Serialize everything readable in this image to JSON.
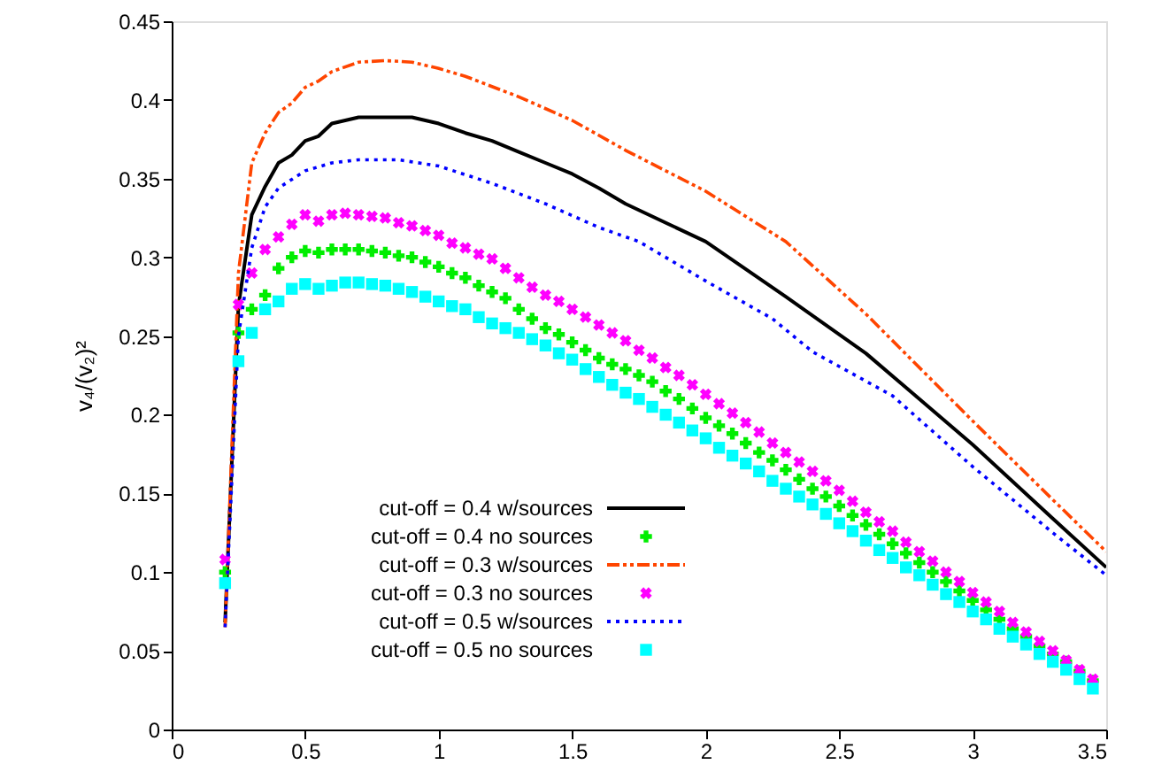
{
  "chart_data": {
    "type": "line",
    "ylabel": "v₄/(v₂)²",
    "xlim": [
      0,
      3.5
    ],
    "xticks": [
      0,
      0.5,
      1,
      1.5,
      2,
      2.5,
      3,
      3.5
    ],
    "ylim": [
      0,
      0.45
    ],
    "yticks": [
      0,
      0.05,
      0.1,
      0.15,
      0.2,
      0.25,
      0.3,
      0.35,
      0.4,
      0.45
    ],
    "grid": false,
    "legend": "bottom left",
    "x": [
      0.2,
      0.25,
      0.3,
      0.35,
      0.4,
      0.45,
      0.5,
      0.55,
      0.6,
      0.65,
      0.7,
      0.75,
      0.8,
      0.85,
      0.9,
      0.95,
      1.0,
      1.05,
      1.1,
      1.15,
      1.2,
      1.25,
      1.3,
      1.35,
      1.4,
      1.45,
      1.5,
      1.55,
      1.6,
      1.65,
      1.7,
      1.75,
      1.8,
      1.85,
      1.9,
      1.95,
      2.0,
      2.05,
      2.1,
      2.15,
      2.2,
      2.25,
      2.3,
      2.35,
      2.4,
      2.45,
      2.5,
      2.55,
      2.6,
      2.65,
      2.7,
      2.75,
      2.8,
      2.85,
      2.9,
      2.95,
      3.0,
      3.05,
      3.1,
      3.15,
      3.2,
      3.25,
      3.3,
      3.35,
      3.4,
      3.45
    ],
    "series": [
      {
        "name": "cut-off = 0.4 w/sources",
        "color": "#000000",
        "line_style": "solid",
        "marker": "none",
        "x": [
          0.2,
          0.25,
          0.3,
          0.35,
          0.4,
          0.45,
          0.5,
          0.55,
          0.6,
          0.65,
          0.7,
          0.8,
          0.85,
          0.9,
          1.0,
          1.1,
          1.2,
          1.3,
          1.4,
          1.5,
          1.6,
          1.7,
          2.0,
          2.3,
          2.6,
          3.0,
          3.3,
          3.5
        ],
        "values": [
          0.068,
          0.269,
          0.327,
          0.345,
          0.36,
          0.365,
          0.374,
          0.377,
          0.385,
          0.387,
          0.389,
          0.389,
          0.389,
          0.389,
          0.385,
          0.379,
          0.374,
          0.367,
          0.36,
          0.353,
          0.344,
          0.334,
          0.31,
          0.275,
          0.239,
          0.181,
          0.134,
          0.103
        ]
      },
      {
        "name": "cut-off = 0.4 no sources",
        "type": "scatter",
        "color": "#00ee00",
        "marker": "cross",
        "values": [
          0.1,
          0.252,
          0.267,
          0.276,
          0.293,
          0.3,
          0.304,
          0.303,
          0.305,
          0.305,
          0.305,
          0.304,
          0.303,
          0.301,
          0.3,
          0.297,
          0.294,
          0.29,
          0.287,
          0.282,
          0.278,
          0.274,
          0.267,
          0.261,
          0.255,
          0.251,
          0.246,
          0.241,
          0.236,
          0.232,
          0.229,
          0.225,
          0.221,
          0.215,
          0.21,
          0.204,
          0.198,
          0.193,
          0.188,
          0.182,
          0.176,
          0.171,
          0.165,
          0.159,
          0.153,
          0.148,
          0.142,
          0.136,
          0.13,
          0.124,
          0.118,
          0.112,
          0.106,
          0.1,
          0.094,
          0.088,
          0.082,
          0.076,
          0.07,
          0.064,
          0.059,
          0.053,
          0.048,
          0.043,
          0.037,
          0.031
        ]
      },
      {
        "name": "cut-off = 0.3 w/sources",
        "color": "#ff4500",
        "line_style": "dashed",
        "marker": "none",
        "x": [
          0.2,
          0.25,
          0.3,
          0.35,
          0.4,
          0.45,
          0.5,
          0.55,
          0.6,
          0.7,
          0.8,
          0.9,
          1.0,
          1.1,
          1.3,
          1.5,
          1.7,
          2.0,
          2.3,
          2.6,
          3.0,
          3.3,
          3.5
        ],
        "values": [
          0.065,
          0.29,
          0.36,
          0.379,
          0.392,
          0.398,
          0.408,
          0.412,
          0.418,
          0.424,
          0.425,
          0.424,
          0.42,
          0.415,
          0.402,
          0.387,
          0.368,
          0.342,
          0.31,
          0.264,
          0.196,
          0.146,
          0.113
        ]
      },
      {
        "name": "cut-off = 0.3 no sources",
        "type": "scatter",
        "color": "#ff00ff",
        "marker": "x",
        "values": [
          0.108,
          0.27,
          0.29,
          0.305,
          0.313,
          0.321,
          0.327,
          0.323,
          0.327,
          0.328,
          0.327,
          0.326,
          0.325,
          0.322,
          0.32,
          0.317,
          0.314,
          0.309,
          0.306,
          0.302,
          0.299,
          0.293,
          0.287,
          0.281,
          0.276,
          0.272,
          0.267,
          0.262,
          0.257,
          0.252,
          0.247,
          0.241,
          0.236,
          0.23,
          0.225,
          0.219,
          0.213,
          0.207,
          0.201,
          0.195,
          0.189,
          0.182,
          0.176,
          0.17,
          0.164,
          0.158,
          0.152,
          0.145,
          0.138,
          0.132,
          0.126,
          0.119,
          0.113,
          0.107,
          0.1,
          0.094,
          0.087,
          0.081,
          0.075,
          0.068,
          0.062,
          0.056,
          0.05,
          0.044,
          0.038,
          0.032
        ]
      },
      {
        "name": "cut-off = 0.5 w/sources",
        "color": "#0000ff",
        "line_style": "dotted",
        "marker": "none",
        "x": [
          0.2,
          0.25,
          0.3,
          0.35,
          0.4,
          0.5,
          0.6,
          0.7,
          0.85,
          1.0,
          1.2,
          1.4,
          1.6,
          1.75,
          2.0,
          2.25,
          2.4,
          2.7,
          3.0,
          3.3,
          3.5
        ],
        "values": [
          0.065,
          0.25,
          0.306,
          0.332,
          0.344,
          0.355,
          0.36,
          0.362,
          0.362,
          0.358,
          0.347,
          0.334,
          0.319,
          0.31,
          0.285,
          0.261,
          0.24,
          0.212,
          0.167,
          0.125,
          0.098
        ]
      },
      {
        "name": "cut-off = 0.5 no sources",
        "type": "scatter",
        "color": "#00ffff",
        "marker": "square",
        "values": [
          0.093,
          0.234,
          0.252,
          0.267,
          0.272,
          0.28,
          0.283,
          0.28,
          0.282,
          0.284,
          0.284,
          0.283,
          0.282,
          0.28,
          0.278,
          0.275,
          0.272,
          0.269,
          0.267,
          0.262,
          0.258,
          0.255,
          0.252,
          0.248,
          0.244,
          0.239,
          0.235,
          0.229,
          0.224,
          0.219,
          0.214,
          0.21,
          0.205,
          0.2,
          0.195,
          0.19,
          0.185,
          0.179,
          0.174,
          0.169,
          0.164,
          0.158,
          0.153,
          0.148,
          0.143,
          0.137,
          0.131,
          0.126,
          0.12,
          0.114,
          0.109,
          0.103,
          0.098,
          0.092,
          0.086,
          0.081,
          0.075,
          0.07,
          0.064,
          0.059,
          0.054,
          0.048,
          0.043,
          0.038,
          0.032,
          0.026
        ]
      }
    ]
  }
}
